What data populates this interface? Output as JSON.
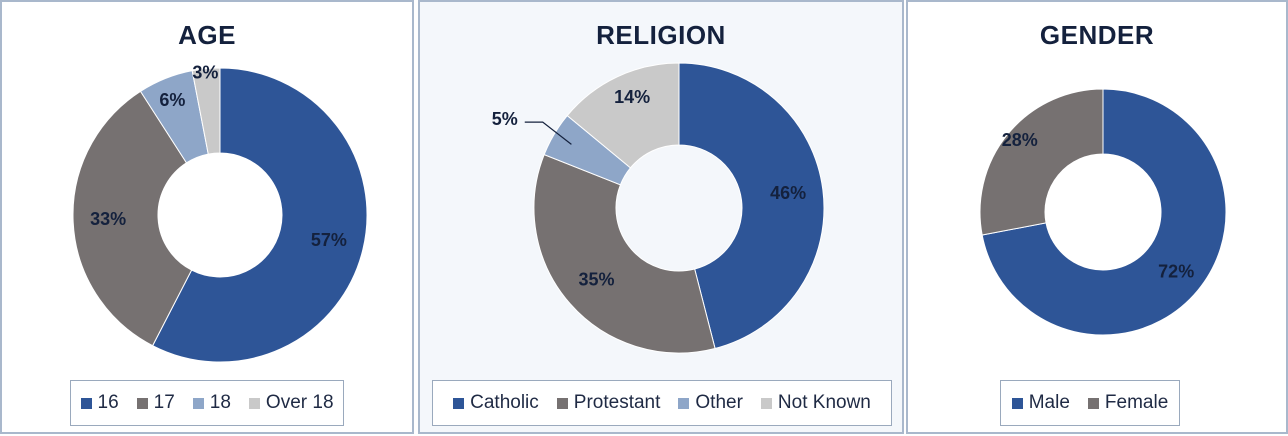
{
  "chart_data": [
    {
      "type": "pie",
      "title": "AGE",
      "categories": [
        "16",
        "17",
        "18",
        "Over 18"
      ],
      "values": [
        57,
        33,
        6,
        3
      ],
      "labels": [
        "57%",
        "33%",
        "6%",
        "3%"
      ],
      "colors": [
        "#2e5597",
        "#767171",
        "#8ea6c8",
        "#c9c9c9"
      ],
      "legend_position": "bottom"
    },
    {
      "type": "pie",
      "title": "RELIGION",
      "categories": [
        "Catholic",
        "Protestant",
        "Other",
        "Not Known"
      ],
      "values": [
        46,
        35,
        5,
        14
      ],
      "labels": [
        "46%",
        "35%",
        "5%",
        "14%"
      ],
      "colors": [
        "#2e5597",
        "#767171",
        "#8ea6c8",
        "#c9c9c9"
      ],
      "legend_position": "bottom"
    },
    {
      "type": "pie",
      "title": "GENDER",
      "categories": [
        "Male",
        "Female"
      ],
      "values": [
        72,
        28
      ],
      "labels": [
        "72%",
        "28%"
      ],
      "colors": [
        "#2e5597",
        "#767171"
      ],
      "legend_position": "bottom"
    }
  ]
}
